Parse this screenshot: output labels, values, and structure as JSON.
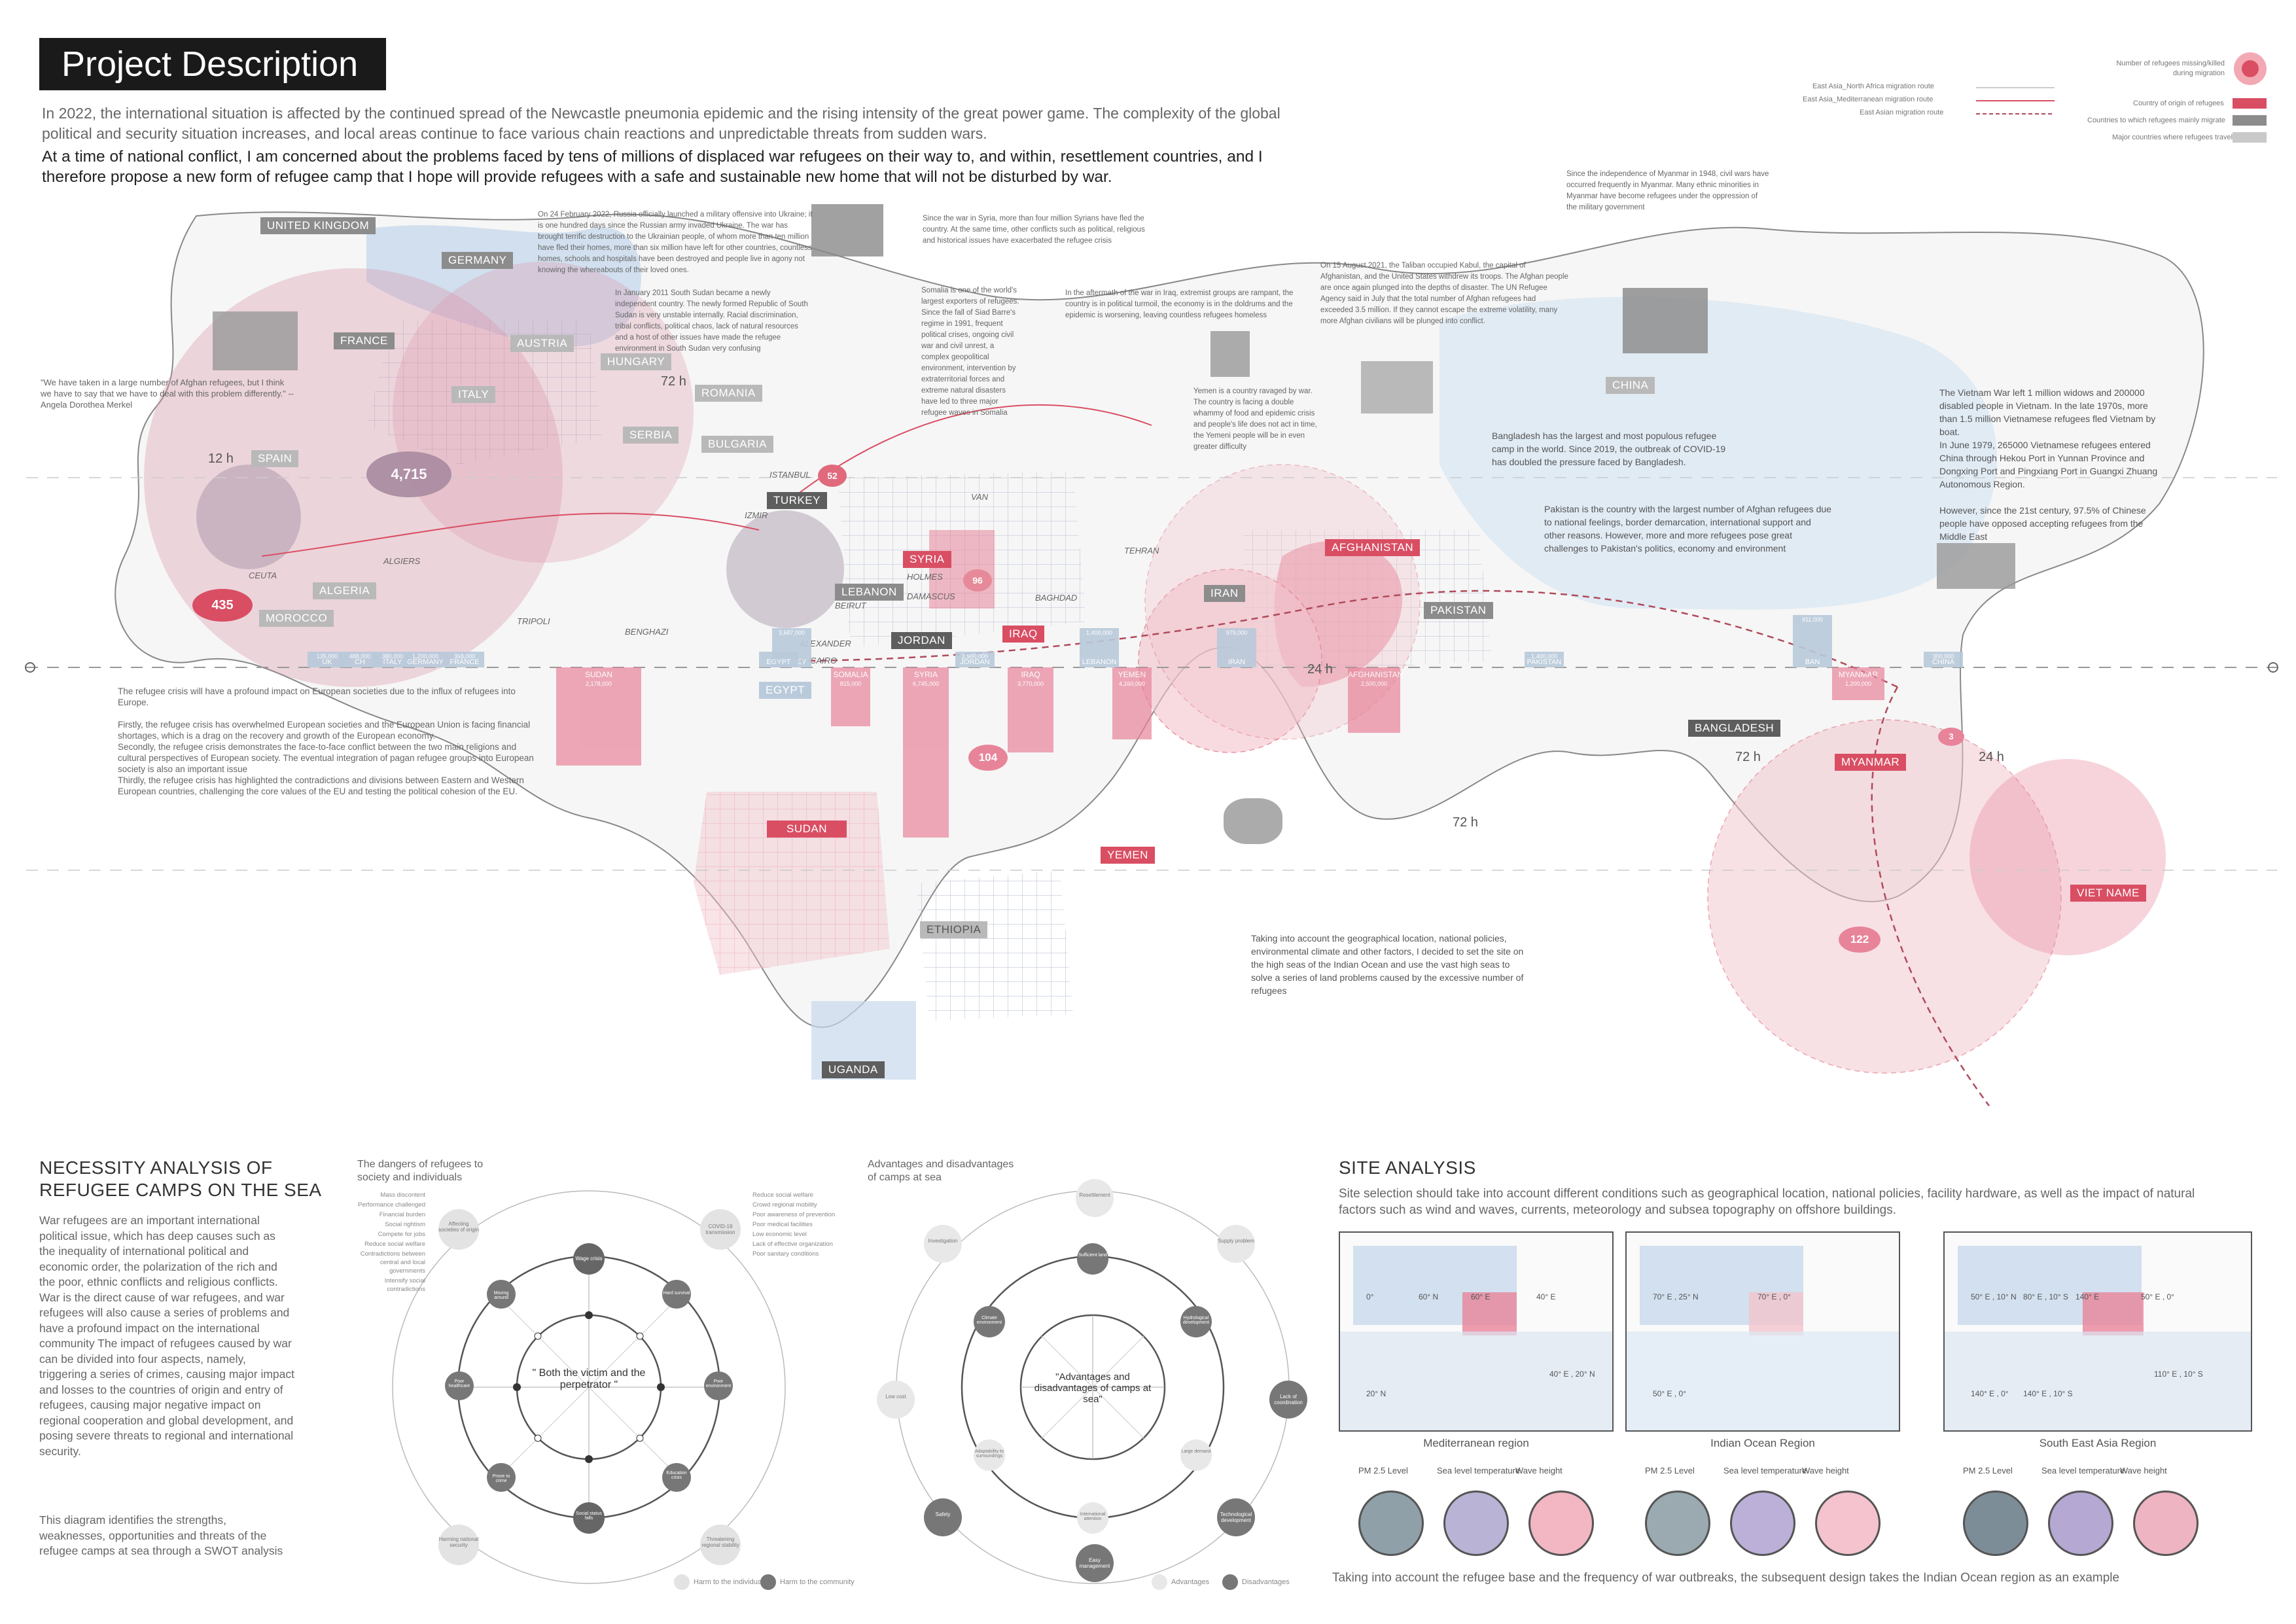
{
  "header": {
    "title": "Project Description",
    "intro_p1": "In 2022, the international situation is affected by the continued spread of the Newcastle pneumonia epidemic and the rising intensity of the great power game. The complexity of the global political and security situation increases, and local areas continue to face various chain reactions and unpredictable threats from sudden wars.",
    "intro_p2": "At a time of national conflict, I am concerned about the problems faced by tens of millions of displaced war refugees on their way to, and within, resettlement countries, and I therefore propose a new form of refugee camp that I hope will provide refugees with a safe and sustainable new home that will not be disturbed by war."
  },
  "legend": {
    "routes": [
      "East Asia_North Africa migration route",
      "East Asia_Mediterranean migration route",
      "East Asian migration route"
    ],
    "items": [
      "Number of refugees missing/killed during migration",
      "Country of origin of refugees",
      "Countries to which refugees mainly migrate",
      "Major countries where refugees travel"
    ],
    "colors": {
      "red": "#d94e63",
      "gray": "#8c8c8c",
      "light": "#c9c9c9",
      "pink": "#f2c4cc",
      "blue": "#c8d9ec"
    }
  },
  "map": {
    "countries": {
      "uk": "UNITED KINGDOM",
      "germany": "GERMANY",
      "france": "FRANCE",
      "austria": "AUSTRIA",
      "hungary": "HUNGARY",
      "italy": "ITALY",
      "romania": "ROMANIA",
      "bulgaria": "BULGARIA",
      "serbia": "SERBIA",
      "spain": "SPAIN",
      "algeria": "ALGERIA",
      "morocco": "MOROCCO",
      "turkey": "TURKEY",
      "syria": "SYRIA",
      "lebanon": "LEBANON",
      "jordan": "JORDAN",
      "iraq": "IRAQ",
      "iran": "IRAN",
      "afghanistan": "AFGHANISTAN",
      "pakistan": "PAKISTAN",
      "china": "CHINA",
      "bangladesh": "BANGLADESH",
      "myanmar": "MYANMAR",
      "vietnam": "VIET NAME",
      "sudan": "SUDAN",
      "yemen": "YEMEN",
      "ethiopia": "ETHIOPIA",
      "uganda": "UGANDA",
      "egypt": "EGYPT"
    },
    "cities": [
      "ALGIERS",
      "TRIPOLI",
      "BENGHAZI",
      "HOLMES",
      "DAMASCUS",
      "BEIRUT",
      "ALEXANDER",
      "CAIRO",
      "BAGHDAD",
      "TEHRAN",
      "VAN",
      "ISTANBUL",
      "IZMIR",
      "CEUTA"
    ],
    "badges": [
      "4,715",
      "435",
      "52",
      "96",
      "104",
      "122",
      "3"
    ],
    "times": [
      "12 h",
      "72 h",
      "24 h",
      "72 h",
      "24 h",
      "72 h"
    ],
    "bars": {
      "host": [
        {
          "country": "UK",
          "value": "135,000"
        },
        {
          "country": "CH",
          "value": "488,000"
        },
        {
          "country": "ITALY",
          "value": "380,000"
        },
        {
          "country": "GERMANY",
          "value": "1,200,000"
        },
        {
          "country": "FRANCE",
          "value": "368,000"
        },
        {
          "country": "TURKEY",
          "value": "3,687,000"
        },
        {
          "country": "EGYPT",
          "value": ""
        },
        {
          "country": "JORDAN",
          "value": "2,900,000"
        },
        {
          "country": "LEBANON",
          "value": "1,400,000"
        },
        {
          "country": "IRAN",
          "value": "979,000"
        },
        {
          "country": "PAKISTAN",
          "value": "1,400,000"
        },
        {
          "country": "BAN",
          "value": "911,000"
        },
        {
          "country": "CHINA",
          "value": "300,000"
        }
      ],
      "origin": [
        {
          "country": "SUDAN",
          "value": "2,178,000"
        },
        {
          "country": "SOMALIA",
          "value": "815,000"
        },
        {
          "country": "SYRIA",
          "value": "6,745,000"
        },
        {
          "country": "IRAQ",
          "value": "3,770,000"
        },
        {
          "country": "YEMEN",
          "value": "4,160,000"
        },
        {
          "country": "AFGHANISTAN",
          "value": "2,500,000"
        },
        {
          "country": "MYANMAR",
          "value": "1,200,000"
        }
      ]
    },
    "notes": {
      "ukraine": "On 24 February 2022, Russia officially launched a military offensive into Ukraine; it is one hundred days since the Russian army invaded Ukraine. The war has brought terrific destruction to the Ukrainian people, of whom more than ten million have fled their homes, more than six million have left for other countries, countless homes, schools and hospitals have been destroyed and people live in agony not knowing the whereabouts of their loved ones.",
      "syria": "Since the war in Syria, more than four million Syrians have fled the country. At the same time, other conflicts such as political, religious and historical issues have exacerbated the refugee crisis",
      "south_sudan": "In January 2011 South Sudan became a newly independent country. The newly formed Republic of South Sudan is very unstable internally. Racial discrimination, tribal conflicts, political chaos, lack of natural resources and a host of other issues have made the refugee environment in South Sudan very confusing",
      "somalia": "Somalia is one of the world's largest exporters of refugees. Since the fall of Siad Barre's regime in 1991, frequent political crises, ongoing civil war and civil unrest, a complex geopolitical environment, intervention by extraterritorial forces and extreme natural disasters have led to three major refugee waves in Somalia",
      "iraq": "In the aftermath of the war in Iraq, extremist groups are rampant, the country is in political turmoil, the economy is in the doldrums and the epidemic is worsening, leaving countless refugees homeless",
      "yemen": "Yemen is a country ravaged by war. The country is facing a double whammy of food and epidemic crisis and people's life does not act in time, the Yemeni people will be in even greater difficulty",
      "afghanistan": "On 15 August 2021, the Taliban occupied Kabul, the capital of Afghanistan, and the United States withdrew its troops. The Afghan people are once again plunged into the depths of disaster. The UN Refugee Agency said in July that the total number of Afghan refugees had exceeded 3.5 million. If they cannot escape the extreme volatility, many more Afghan civilians will be plunged into conflict.",
      "myanmar": "Since the independence of Myanmar in 1948, civil wars have occurred frequently in Myanmar. Many ethnic minorities in Myanmar have become refugees under the oppression of the military government",
      "bangladesh": "Bangladesh has the largest and most populous refugee camp in the world. Since 2019, the outbreak of COVID-19 has doubled the pressure faced by Bangladesh.",
      "pakistan": "Pakistan is the country with the largest number of Afghan refugees due to national feelings, border demarcation, international support and other reasons. However, more and more refugees pose great challenges to Pakistan's politics, economy and environment",
      "vietnam": "The Vietnam War left 1 million widows and 200000 disabled people in Vietnam. In the late 1970s, more than 1.5 million Vietnamese refugees fled Vietnam by boat.\nIn June 1979, 265000 Vietnamese refugees entered China through Hekou Port in Yunnan Province and Dongxing Port and Pingxiang Port in Guangxi Zhuang Autonomous Region.\n\nHowever, since the 21st century, 97.5% of Chinese people have opposed accepting refugees from the Middle East",
      "merkel": "\"We have taken in a large number of Afghan refugees, but I think we have to say that we have to deal with this problem differently.\" --Angela Dorothea Merkel",
      "europe": "The refugee crisis will have a profound impact on European societies due to the influx of refugees into Europe.\n\nFirstly, the refugee crisis has overwhelmed European societies and the European Union is facing financial shortages, which is a drag on the recovery and growth of the European economy.\nSecondly, the refugee crisis demonstrates the face-to-face conflict between the two main religions and cultural perspectives of European society. The eventual integration of pagan refugee groups into European society is also an important issue\nThirdly, the refugee crisis has highlighted the contradictions and divisions between Eastern and Western European countries, challenging the core values of the EU and testing the political cohesion of the EU.",
      "site": "Taking into account the geographical location, national policies, environmental climate and other factors, I decided to set the site on the high seas of the Indian Ocean and use the vast high seas to solve a series of land problems caused by the excessive number of refugees"
    }
  },
  "necessity": {
    "title": "NECESSITY ANALYSIS OF REFUGEE CAMPS ON THE SEA",
    "body": "War refugees are an important international political issue, which has deep causes such as the inequality of international political and economic order, the polarization of the rich and the poor, ethnic conflicts and religious conflicts. War is the direct cause of war refugees, and war refugees will also cause a series of problems and have a profound impact on the international community The impact of refugees caused by war can be divided into four aspects, namely, triggering a series of crimes, causing major impact and losses to the countries of origin and entry of refugees, causing major negative impact on regional cooperation and global development, and posing severe threats to regional and international security.",
    "swot_note": "This diagram identifies the strengths, weaknesses, opportunities and threats of the refugee camps at sea through a SWOT analysis",
    "diagram1": {
      "title": "The dangers of refugees to society and individuals",
      "center": "\" Both the victim and the perpetrator \"",
      "outer": [
        "Affecting societies of origin",
        "COVID-19 transmission",
        "Threatening regional stability",
        "Harming national security"
      ],
      "inner": [
        "Wage crisis",
        "Hard survival",
        "Poor environment",
        "Education crisis",
        "Social status falls",
        "Prone to crime",
        "Poor healthcare",
        "Moving around"
      ],
      "left_notes": [
        "Mass discontent",
        "Performance challenged",
        "Financial burden",
        "Social rightism",
        "Compete for jobs",
        "Reduce social welfare",
        "Contradictions between central and local governments",
        "Intensify social contradictions"
      ],
      "right_notes": [
        "Reduce social welfare",
        "Crowd regional mobility",
        "Poor awareness of prevention",
        "Poor medical facilities",
        "Low economic level",
        "Lack of effective organization",
        "Poor sanitary conditions"
      ],
      "legend": [
        "Harm to the individual",
        "Harm to the community"
      ]
    },
    "diagram2": {
      "title": "Advantages and disadvantages of camps at sea",
      "center": "\"Advantages and disadvantages of camps at sea\"",
      "outer": [
        "Resettlement",
        "Investigation",
        "Low cost",
        "Safety",
        "Easy management",
        "Technological development",
        "Lack of coordination",
        "Supply problem"
      ],
      "inner": [
        "Sufficient land",
        "Climate environment",
        "Adaptability to surroundings",
        "International attention",
        "Large demand",
        "Hydrological development"
      ],
      "legend": [
        "Advantages",
        "Disadvantages"
      ]
    }
  },
  "site": {
    "title": "SITE ANALYSIS",
    "body": "Site selection should take into account different conditions such as geographical location, national policies, facility hardware, as well as the impact of natural factors such as wind and waves, currents, meteorology and subsea topography on offshore buildings.",
    "regions": [
      {
        "name": "Mediterranean region",
        "coords": [
          "0°",
          "20° N",
          "60° E",
          "40° E",
          "60° N",
          "40° E , 20° N"
        ]
      },
      {
        "name": "Indian Ocean Region",
        "coords": [
          "70° E , 25° N",
          "50° E , 0°",
          "70° E , 0°"
        ]
      },
      {
        "name": "South East Asia Region",
        "coords": [
          "50° E , 10° N",
          "140° E , 0°",
          "140° E",
          "50° E , 0°",
          "80° E , 10° S",
          "110° E , 10° S",
          "140° E , 10° S"
        ]
      }
    ],
    "metrics": [
      "PM 2.5 Level",
      "Sea level temperature",
      "Wave height"
    ],
    "conclusion": "Taking into account the refugee base and the frequency of war outbreaks, the subsequent design takes the Indian Ocean region as an example"
  }
}
